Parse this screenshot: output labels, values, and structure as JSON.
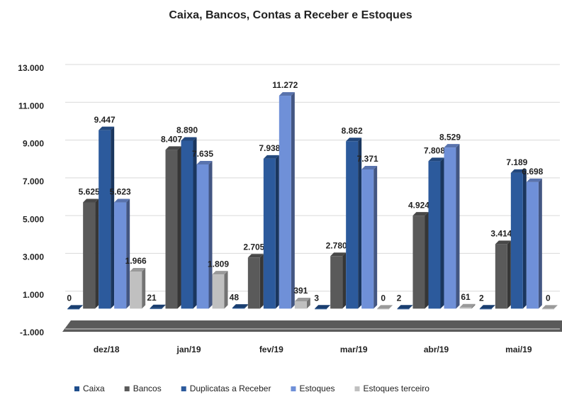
{
  "chart_data": {
    "type": "bar",
    "title": "Caixa, Bancos, Contas a Receber e Estoques",
    "categories": [
      "dez/18",
      "jan/19",
      "fev/19",
      "mar/19",
      "abr/19",
      "mai/19"
    ],
    "series": [
      {
        "name": "Caixa",
        "color": "#1f4e8c",
        "values": [
          0,
          21,
          48,
          3,
          2,
          2
        ],
        "value_labels": [
          "0",
          "21",
          "48",
          "3",
          "2",
          "2"
        ]
      },
      {
        "name": "Bancos",
        "color": "#5a5a5a",
        "values": [
          5625,
          8407,
          2705,
          2780,
          4924,
          3414
        ],
        "value_labels": [
          "5.625",
          "8.407",
          "2.705",
          "2.780",
          "4.924",
          "3.414"
        ]
      },
      {
        "name": "Duplicatas a Receber",
        "color": "#2c5a9c",
        "values": [
          9447,
          8890,
          7938,
          8862,
          7808,
          7189
        ],
        "value_labels": [
          "9.447",
          "8.890",
          "7.938",
          "8.862",
          "7.808",
          "7.189"
        ]
      },
      {
        "name": "Estoques",
        "color": "#6f90d8",
        "values": [
          5623,
          7635,
          11272,
          7371,
          8529,
          6698
        ],
        "value_labels": [
          "5.623",
          "7.635",
          "11.272",
          "7.371",
          "8.529",
          "6.698"
        ]
      },
      {
        "name": "Estoques terceiro",
        "color": "#c0c0c0",
        "values": [
          1966,
          1809,
          391,
          0,
          61,
          0
        ],
        "value_labels": [
          "1.966",
          "1.809",
          "391",
          "0",
          "61",
          "0"
        ]
      }
    ],
    "ylim": [
      -1000,
      13000
    ],
    "yticks": [
      {
        "value": -1000,
        "label": "-1.000"
      },
      {
        "value": 1000,
        "label": "1.000"
      },
      {
        "value": 3000,
        "label": "3.000"
      },
      {
        "value": 5000,
        "label": "5.000"
      },
      {
        "value": 7000,
        "label": "7.000"
      },
      {
        "value": 9000,
        "label": "9.000"
      },
      {
        "value": 11000,
        "label": "11.000"
      },
      {
        "value": 13000,
        "label": "13.000"
      }
    ],
    "grid": true,
    "legend": "bottom"
  }
}
